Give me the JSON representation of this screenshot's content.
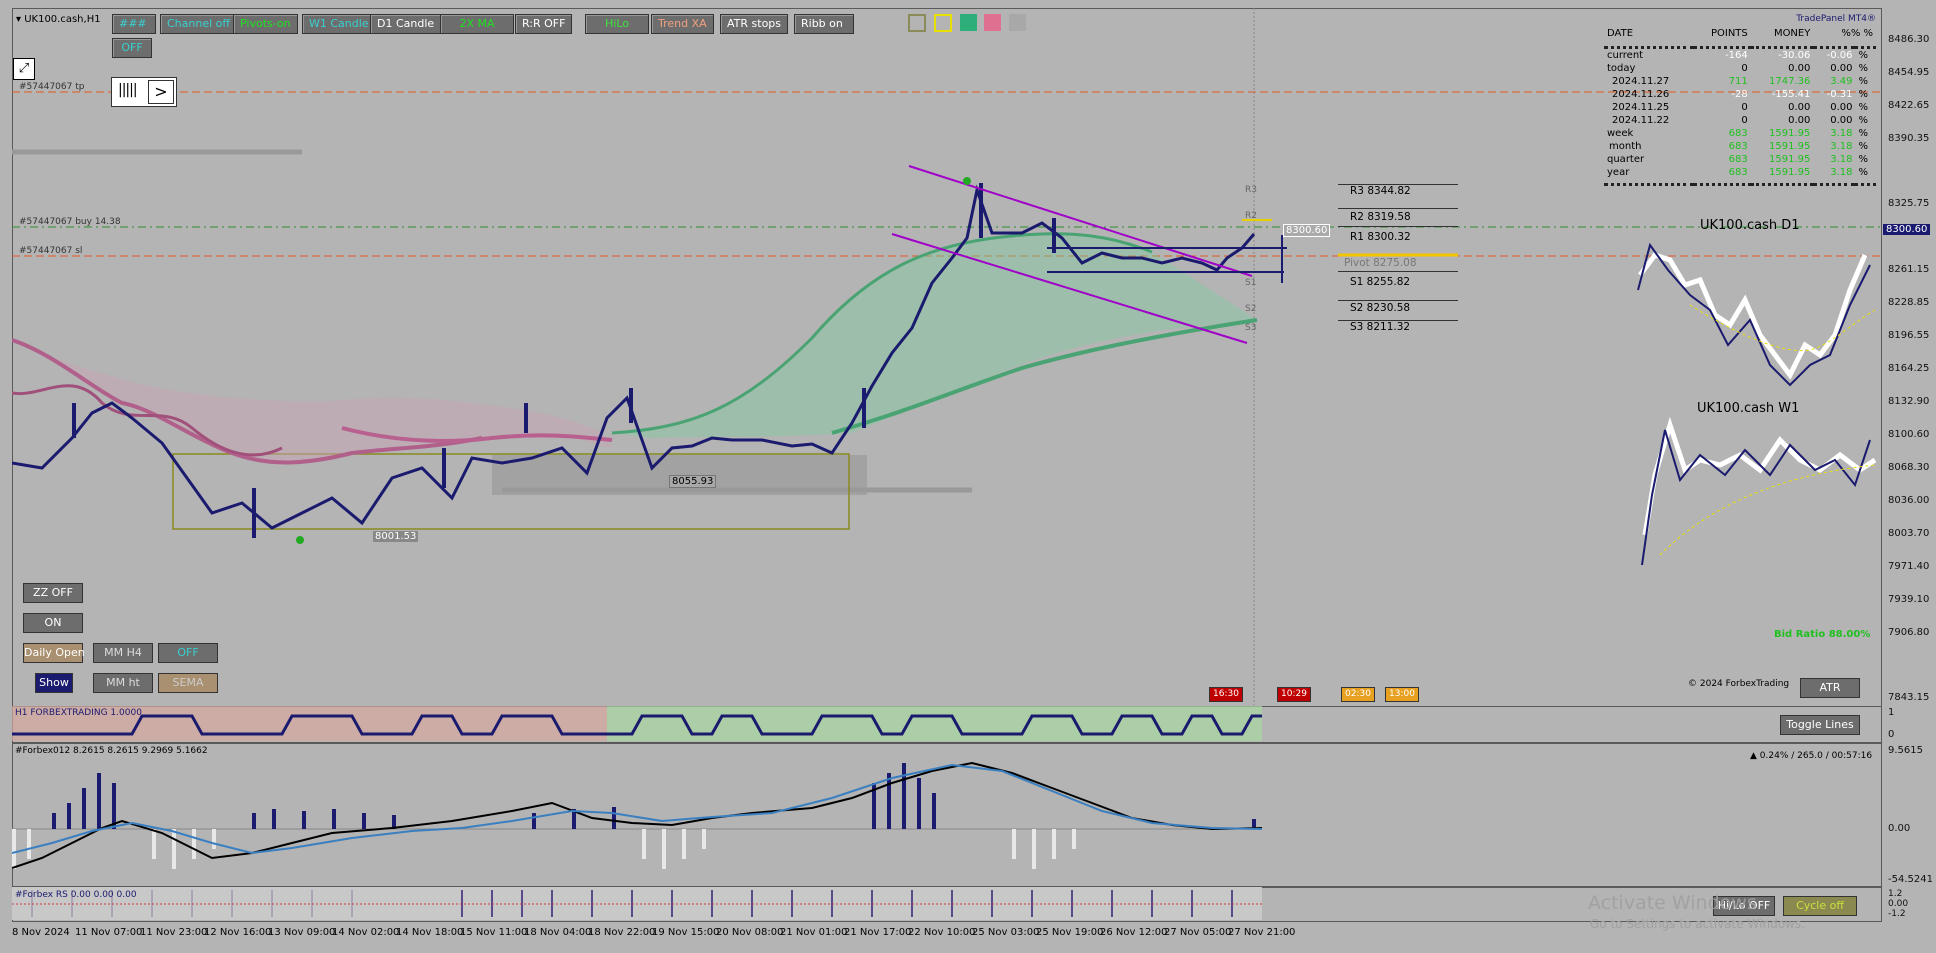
{
  "symbol": "UK100.cash,H1",
  "toolbar": [
    {
      "label": "###",
      "color": "#39d0d0"
    },
    {
      "label": "Channel off",
      "color": "#39d0d0"
    },
    {
      "label": "Pivots-on",
      "color": "#20e020"
    },
    {
      "label": "W1 Candle",
      "color": "#39d0d0"
    },
    {
      "label": "D1 Candle",
      "color": "#ffffff"
    },
    {
      "label": "2X MA",
      "color": "#20e020"
    },
    {
      "label": "R:R OFF",
      "color": "#ffffff"
    },
    {
      "label": "HiLo",
      "color": "#40e040"
    },
    {
      "label": "Trend XA",
      "color": "#f0a080"
    },
    {
      "label": "ATR stops",
      "color": "#ffffff"
    },
    {
      "label": "Ribb on",
      "color": "#ffffff"
    }
  ],
  "off_button": "OFF",
  "color_swatches": [
    "#8b8b5a",
    "#e8e000",
    "#2eae78",
    "#e07090",
    "#a8a8a8"
  ],
  "levels": {
    "tp": "#57447067 tp",
    "buy": "#57447067 buy 14.38",
    "sl": "#57447067 sl"
  },
  "price_labels": {
    "low1": "8001.53",
    "low2": "8055.93",
    "current_box": "8300.60",
    "pivot_lbl": "Pivot 8275.08"
  },
  "pivots": [
    {
      "label": "R3 8344.82"
    },
    {
      "label": "R2 8319.58"
    },
    {
      "label": "R1 8300.32"
    },
    {
      "label": "Pivot 8275.08"
    },
    {
      "label": "S1 8255.82"
    },
    {
      "label": "S2 8230.58"
    },
    {
      "label": "S3 8211.32"
    }
  ],
  "pivot_tags": [
    "R3",
    "R2",
    "S1",
    "S2",
    "S3"
  ],
  "trade_panel": {
    "title": "TradePanel MT4®",
    "headers": [
      "DATE",
      "POINTS",
      "MONEY",
      "%%  %"
    ],
    "rows": [
      {
        "date": "current",
        "points": "-164",
        "money": "-30.06",
        "pct": "-0.06",
        "unit": "%"
      },
      {
        "date": "today",
        "points": "0",
        "money": "0.00",
        "pct": "0.00",
        "unit": "%"
      },
      {
        "date": "2024.11.27",
        "points": "711",
        "money": "1747.36",
        "pct": "3.49",
        "unit": "%"
      },
      {
        "date": "2024.11.26",
        "points": "-28",
        "money": "-155.41",
        "pct": "-0.31",
        "unit": "%"
      },
      {
        "date": "2024.11.25",
        "points": "0",
        "money": "0.00",
        "pct": "0.00",
        "unit": "%"
      },
      {
        "date": "2024.11.22",
        "points": "0",
        "money": "0.00",
        "pct": "0.00",
        "unit": "%"
      },
      {
        "date": "week",
        "points": "683",
        "money": "1591.95",
        "pct": "3.18",
        "unit": "%"
      },
      {
        "date": "month",
        "points": "683",
        "money": "1591.95",
        "pct": "3.18",
        "unit": "%"
      },
      {
        "date": "quarter",
        "points": "683",
        "money": "1591.95",
        "pct": "3.18",
        "unit": "%"
      },
      {
        "date": "year",
        "points": "683",
        "money": "1591.95",
        "pct": "3.18",
        "unit": "%"
      }
    ]
  },
  "mini_charts": {
    "d1": "UK100.cash D1",
    "w1": "UK100.cash W1"
  },
  "bid_ratio": "Bid Ratio 88.00%",
  "copyright": "© 2024 ForbexTrading",
  "atr_button": "ATR",
  "left_buttons": {
    "zz": "ZZ OFF",
    "on": "ON",
    "daily_open": "Daily Open",
    "mm_h4": "MM H4",
    "off2": "OFF",
    "show": "Show",
    "mm_ht": "MM ht",
    "sema": "SEMA"
  },
  "sessions": [
    {
      "label": "16:30"
    },
    {
      "label": "10:29"
    },
    {
      "label": "02:30"
    },
    {
      "label": "13:00"
    }
  ],
  "indicator1": {
    "title": "H1 FORBEXTRADING 1.0000",
    "toggle": "Toggle Lines"
  },
  "indicator2": {
    "title": "#Forbex012 8.2615 8.2615 9.2969 5.1662",
    "info": "▲ 0.24% / 265.0 / 00:57:16"
  },
  "indicator3": {
    "title": "#Forbex RS 0.00 0.00 0.00",
    "hilo": "Hi/Lo OFF",
    "cycle": "Cycle off"
  },
  "price_axis": [
    "8486.30",
    "8454.95",
    "8422.65",
    "8390.35",
    "8325.75",
    "8300.60",
    "8261.15",
    "8228.85",
    "8196.55",
    "8164.25",
    "8132.90",
    "8100.60",
    "8068.30",
    "8036.00",
    "8003.70",
    "7971.40",
    "7939.10",
    "7906.80",
    "7843.15"
  ],
  "ind1_axis": [
    "1",
    "0"
  ],
  "ind2_axis": [
    "9.5615",
    "0.00",
    "-54.5241"
  ],
  "ind3_axis": [
    "1.2",
    "0.00",
    "-1.2"
  ],
  "time_axis": [
    "8 Nov 2024",
    "11 Nov 07:00",
    "11 Nov 23:00",
    "12 Nov 16:00",
    "13 Nov 09:00",
    "14 Nov 02:00",
    "14 Nov 18:00",
    "15 Nov 11:00",
    "18 Nov 04:00",
    "18 Nov 22:00",
    "19 Nov 15:00",
    "20 Nov 08:00",
    "21 Nov 01:00",
    "21 Nov 17:00",
    "22 Nov 10:00",
    "25 Nov 03:00",
    "25 Nov 19:00",
    "26 Nov 12:00",
    "27 Nov 05:00",
    "27 Nov 21:00"
  ],
  "watermark": {
    "line1": "Activate Windows",
    "line2": "Go to Settings to activate Windows."
  }
}
